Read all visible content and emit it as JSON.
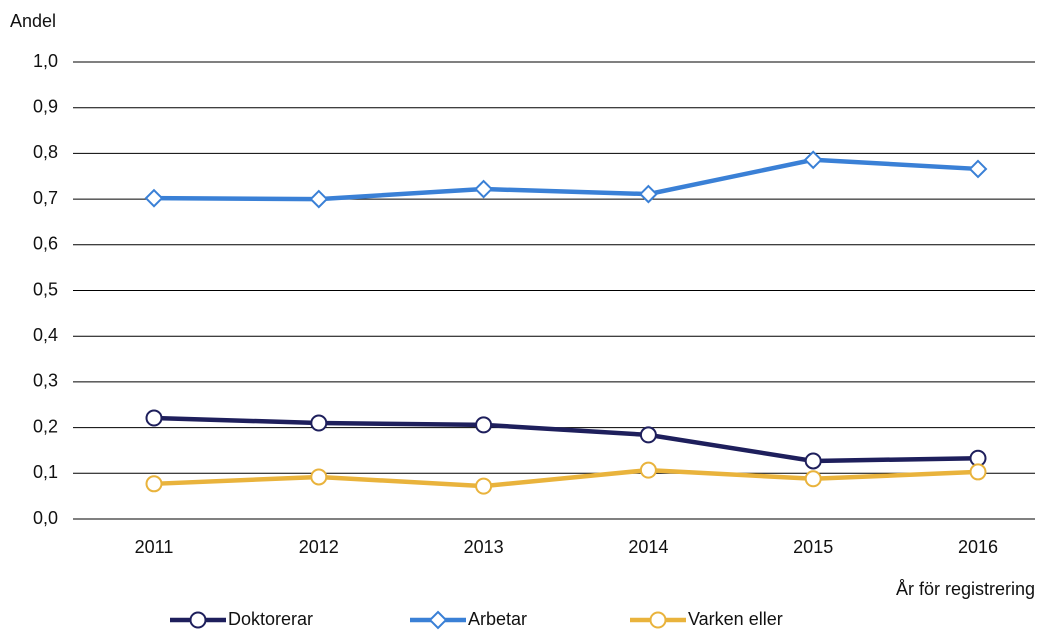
{
  "chart_data": {
    "type": "line",
    "y_label": "Andel",
    "x_label": "År för registrering",
    "categories": [
      "2011",
      "2012",
      "2013",
      "2014",
      "2015",
      "2016"
    ],
    "series": [
      {
        "name": "Doktorerar",
        "color": "#1e1f5c",
        "marker": "circle",
        "values": [
          0.221,
          0.21,
          0.206,
          0.184,
          0.127,
          0.133
        ]
      },
      {
        "name": "Arbetar",
        "color": "#3a80d6",
        "marker": "diamond",
        "values": [
          0.702,
          0.7,
          0.722,
          0.711,
          0.786,
          0.766
        ]
      },
      {
        "name": "Varken eller",
        "color": "#e9b33c",
        "marker": "circle",
        "values": [
          0.077,
          0.092,
          0.072,
          0.107,
          0.088,
          0.103
        ]
      }
    ],
    "ylim": [
      0,
      1
    ],
    "yticks": [
      {
        "value": 0,
        "label": "0,0"
      },
      {
        "value": 0.1,
        "label": "0,1"
      },
      {
        "value": 0.2,
        "label": "0,2"
      },
      {
        "value": 0.3,
        "label": "0,3"
      },
      {
        "value": 0.4,
        "label": "0,4"
      },
      {
        "value": 0.5,
        "label": "0,5"
      },
      {
        "value": 0.6,
        "label": "0,6"
      },
      {
        "value": 0.7,
        "label": "0,7"
      },
      {
        "value": 0.8,
        "label": "0,8"
      },
      {
        "value": 0.9,
        "label": "0,9"
      },
      {
        "value": 1,
        "label": "1,0"
      }
    ],
    "grid": true,
    "legend": "bottom"
  }
}
